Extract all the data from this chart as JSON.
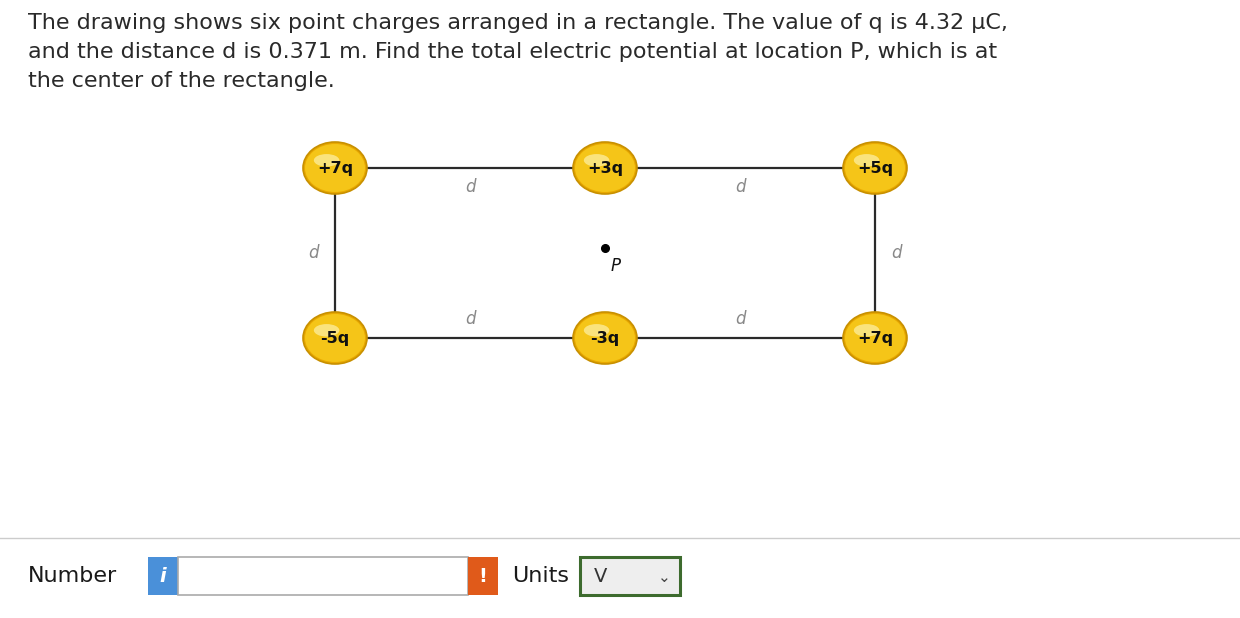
{
  "title_text": "The drawing shows six point charges arranged in a rectangle. The value of q is 4.32 μC,\nand the distance d is 0.371 m. Find the total electric potential at location P, which is at\nthe center of the rectangle.",
  "charge_labels_top": [
    "+7q",
    "+3q",
    "+5q"
  ],
  "charge_labels_bottom": [
    "-5q",
    "-3q",
    "+7q"
  ],
  "charge_color_outer": "#E8A800",
  "charge_color_mid": "#F5C518",
  "charge_color_inner": "#FDEEA0",
  "charge_edge": "#C89000",
  "rect_color": "#2a2a2a",
  "d_label_color": "#888888",
  "background_color": "#ffffff",
  "text_color": "#2a2a2a",
  "blue_btn_color": "#4a90d9",
  "orange_btn_color": "#e05a1a",
  "green_border_color": "#3d6b2e",
  "title_fontsize": 16,
  "d_fontsize": 12
}
